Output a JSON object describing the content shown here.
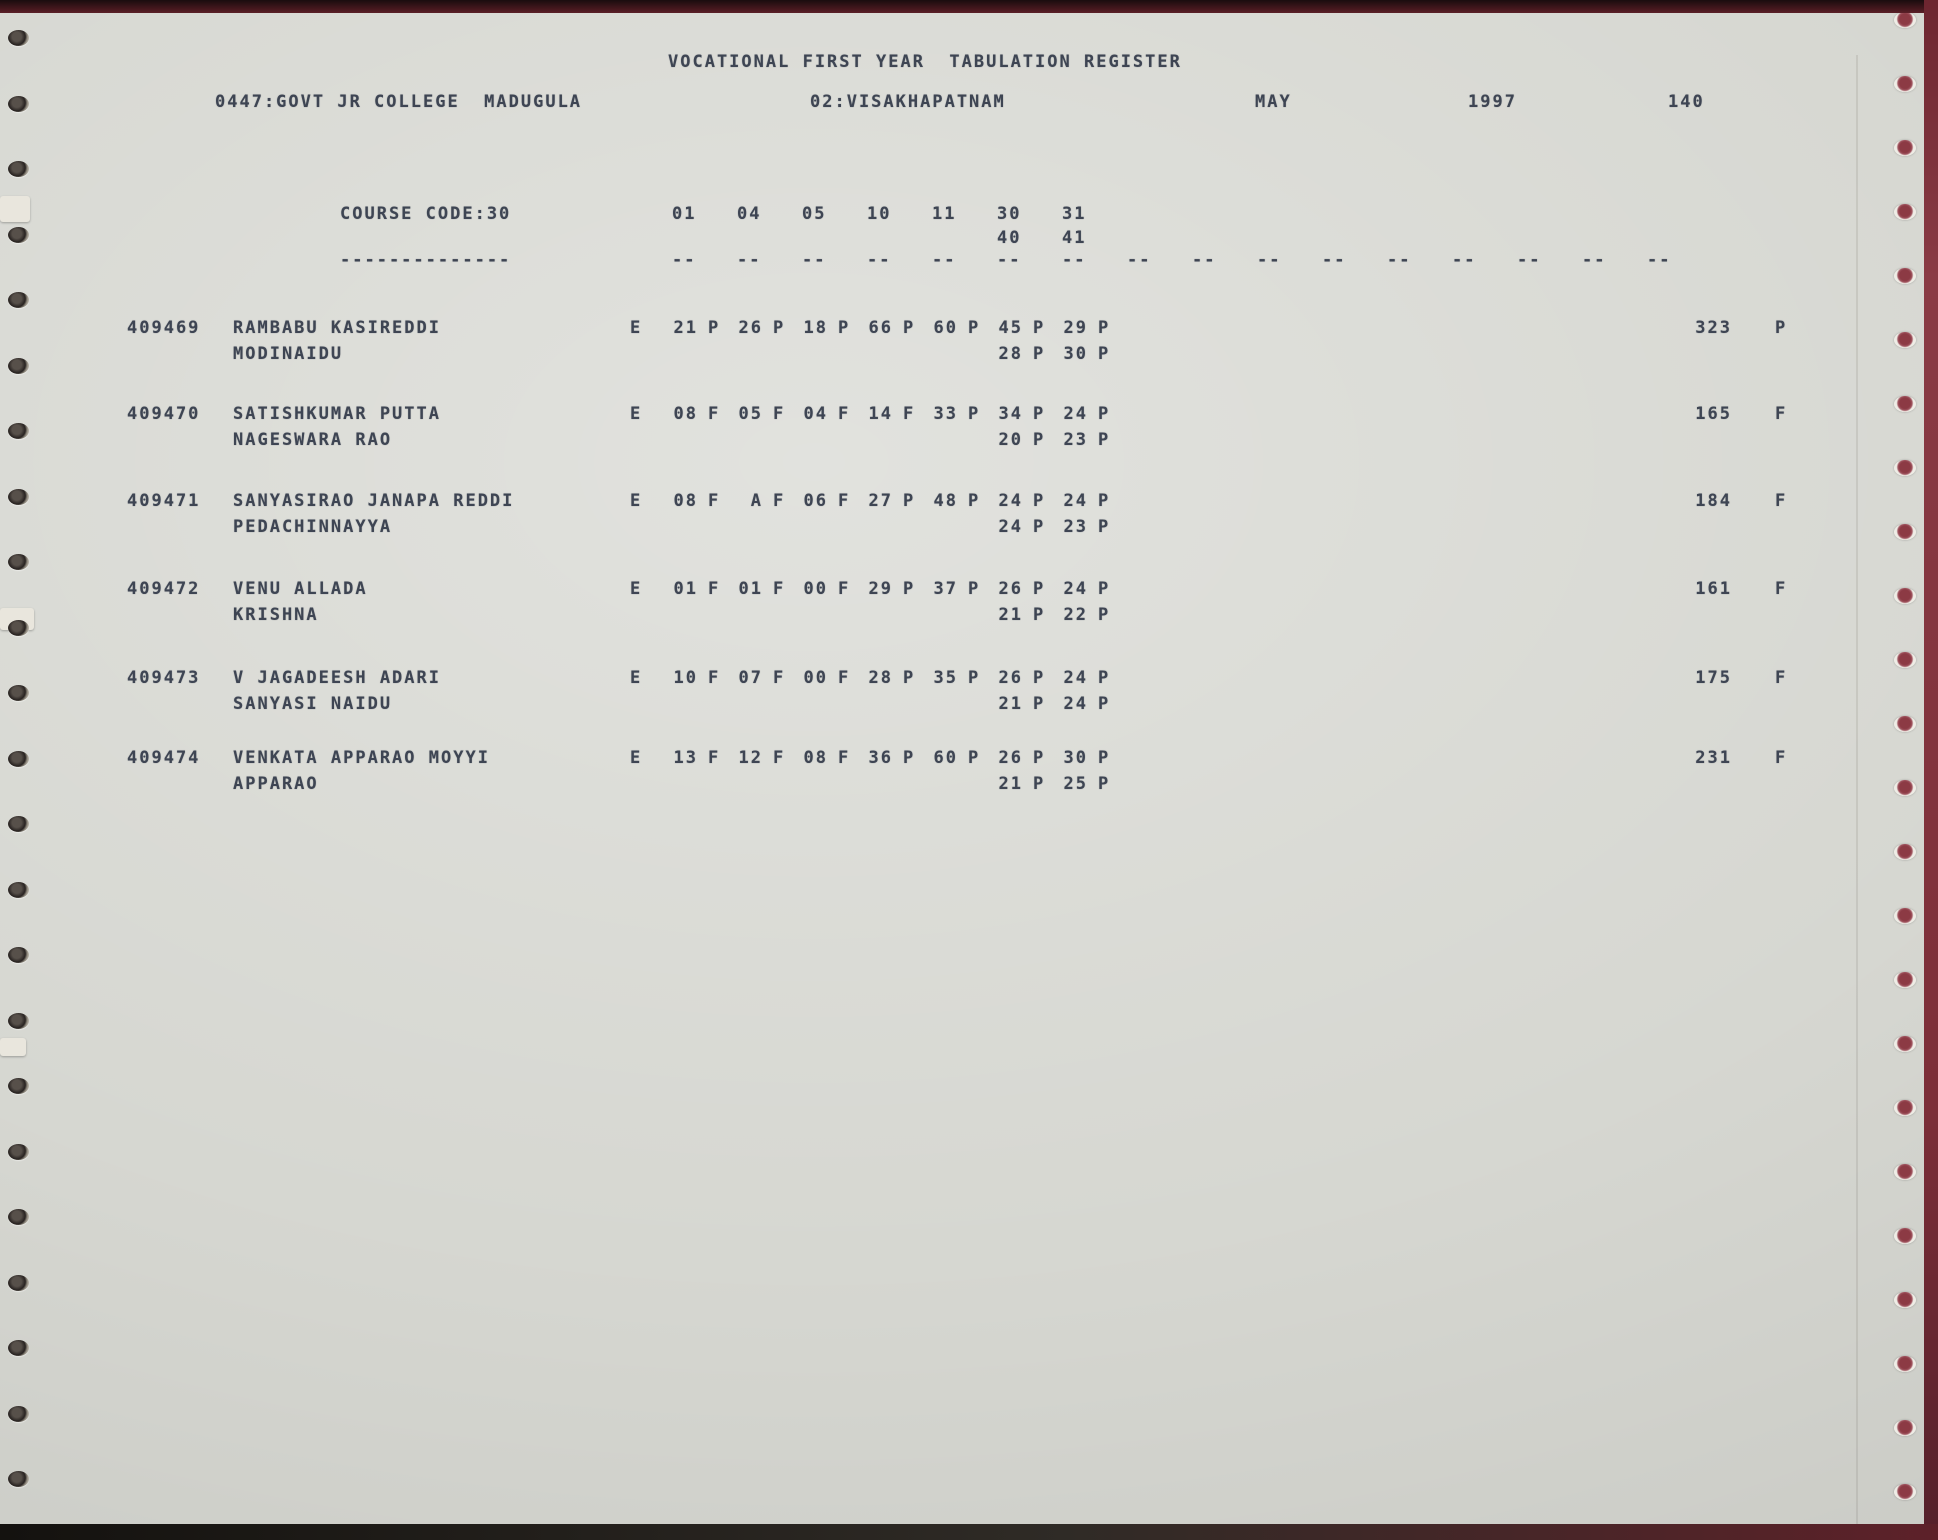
{
  "header": {
    "title": "VOCATIONAL FIRST YEAR  TABULATION REGISTER",
    "college": "0447:GOVT JR COLLEGE  MADUGULA",
    "district": "02:VISAKHAPATNAM",
    "month": "MAY",
    "year": "1997",
    "sheet_number": "140"
  },
  "course": {
    "label": "COURSE CODE:30",
    "label_underline": "--------------",
    "subject_codes_row1": [
      "01",
      "04",
      "05",
      "10",
      "11",
      "30",
      "31"
    ],
    "subject_codes_row2": [
      "40",
      "41"
    ],
    "column_dash": "--",
    "column_dash_count": 16
  },
  "register": {
    "students": [
      {
        "roll": "409469",
        "name": "RAMBABU KASIREDDI",
        "guardian": "MODINAIDU",
        "medium": "E",
        "marks1": [
          [
            "21",
            "P"
          ],
          [
            "26",
            "P"
          ],
          [
            "18",
            "P"
          ],
          [
            "66",
            "P"
          ],
          [
            "60",
            "P"
          ],
          [
            "45",
            "P"
          ],
          [
            "29",
            "P"
          ]
        ],
        "marks2": [
          [
            "28",
            "P"
          ],
          [
            "30",
            "P"
          ]
        ],
        "total": "323",
        "result": "P"
      },
      {
        "roll": "409470",
        "name": "SATISHKUMAR PUTTA",
        "guardian": "NAGESWARA RAO",
        "medium": "E",
        "marks1": [
          [
            "08",
            "F"
          ],
          [
            "05",
            "F"
          ],
          [
            "04",
            "F"
          ],
          [
            "14",
            "F"
          ],
          [
            "33",
            "P"
          ],
          [
            "34",
            "P"
          ],
          [
            "24",
            "P"
          ]
        ],
        "marks2": [
          [
            "20",
            "P"
          ],
          [
            "23",
            "P"
          ]
        ],
        "total": "165",
        "result": "F"
      },
      {
        "roll": "409471",
        "name": "SANYASIRAO JANAPA REDDI",
        "guardian": "PEDACHINNAYYA",
        "medium": "E",
        "marks1": [
          [
            "08",
            "F"
          ],
          [
            "A",
            "F"
          ],
          [
            "06",
            "F"
          ],
          [
            "27",
            "P"
          ],
          [
            "48",
            "P"
          ],
          [
            "24",
            "P"
          ],
          [
            "24",
            "P"
          ]
        ],
        "marks2": [
          [
            "24",
            "P"
          ],
          [
            "23",
            "P"
          ]
        ],
        "total": "184",
        "result": "F"
      },
      {
        "roll": "409472",
        "name": "VENU ALLADA",
        "guardian": "KRISHNA",
        "medium": "E",
        "marks1": [
          [
            "01",
            "F"
          ],
          [
            "01",
            "F"
          ],
          [
            "00",
            "F"
          ],
          [
            "29",
            "P"
          ],
          [
            "37",
            "P"
          ],
          [
            "26",
            "P"
          ],
          [
            "24",
            "P"
          ]
        ],
        "marks2": [
          [
            "21",
            "P"
          ],
          [
            "22",
            "P"
          ]
        ],
        "total": "161",
        "result": "F"
      },
      {
        "roll": "409473",
        "name": "V JAGADEESH ADARI",
        "guardian": "SANYASI NAIDU",
        "medium": "E",
        "marks1": [
          [
            "10",
            "F"
          ],
          [
            "07",
            "F"
          ],
          [
            "00",
            "F"
          ],
          [
            "28",
            "P"
          ],
          [
            "35",
            "P"
          ],
          [
            "26",
            "P"
          ],
          [
            "24",
            "P"
          ]
        ],
        "marks2": [
          [
            "21",
            "P"
          ],
          [
            "24",
            "P"
          ]
        ],
        "total": "175",
        "result": "F"
      },
      {
        "roll": "409474",
        "name": "VENKATA APPARAO MOYYI",
        "guardian": "APPARAO",
        "medium": "E",
        "marks1": [
          [
            "13",
            "F"
          ],
          [
            "12",
            "F"
          ],
          [
            "08",
            "F"
          ],
          [
            "36",
            "P"
          ],
          [
            "60",
            "P"
          ],
          [
            "26",
            "P"
          ],
          [
            "30",
            "P"
          ]
        ],
        "marks2": [
          [
            "21",
            "P"
          ],
          [
            "25",
            "P"
          ]
        ],
        "total": "231",
        "result": "F"
      }
    ]
  },
  "colors": {
    "ink": "#3e4553",
    "paper": "#d6d7d1",
    "cover_red": "#7c2e38"
  }
}
